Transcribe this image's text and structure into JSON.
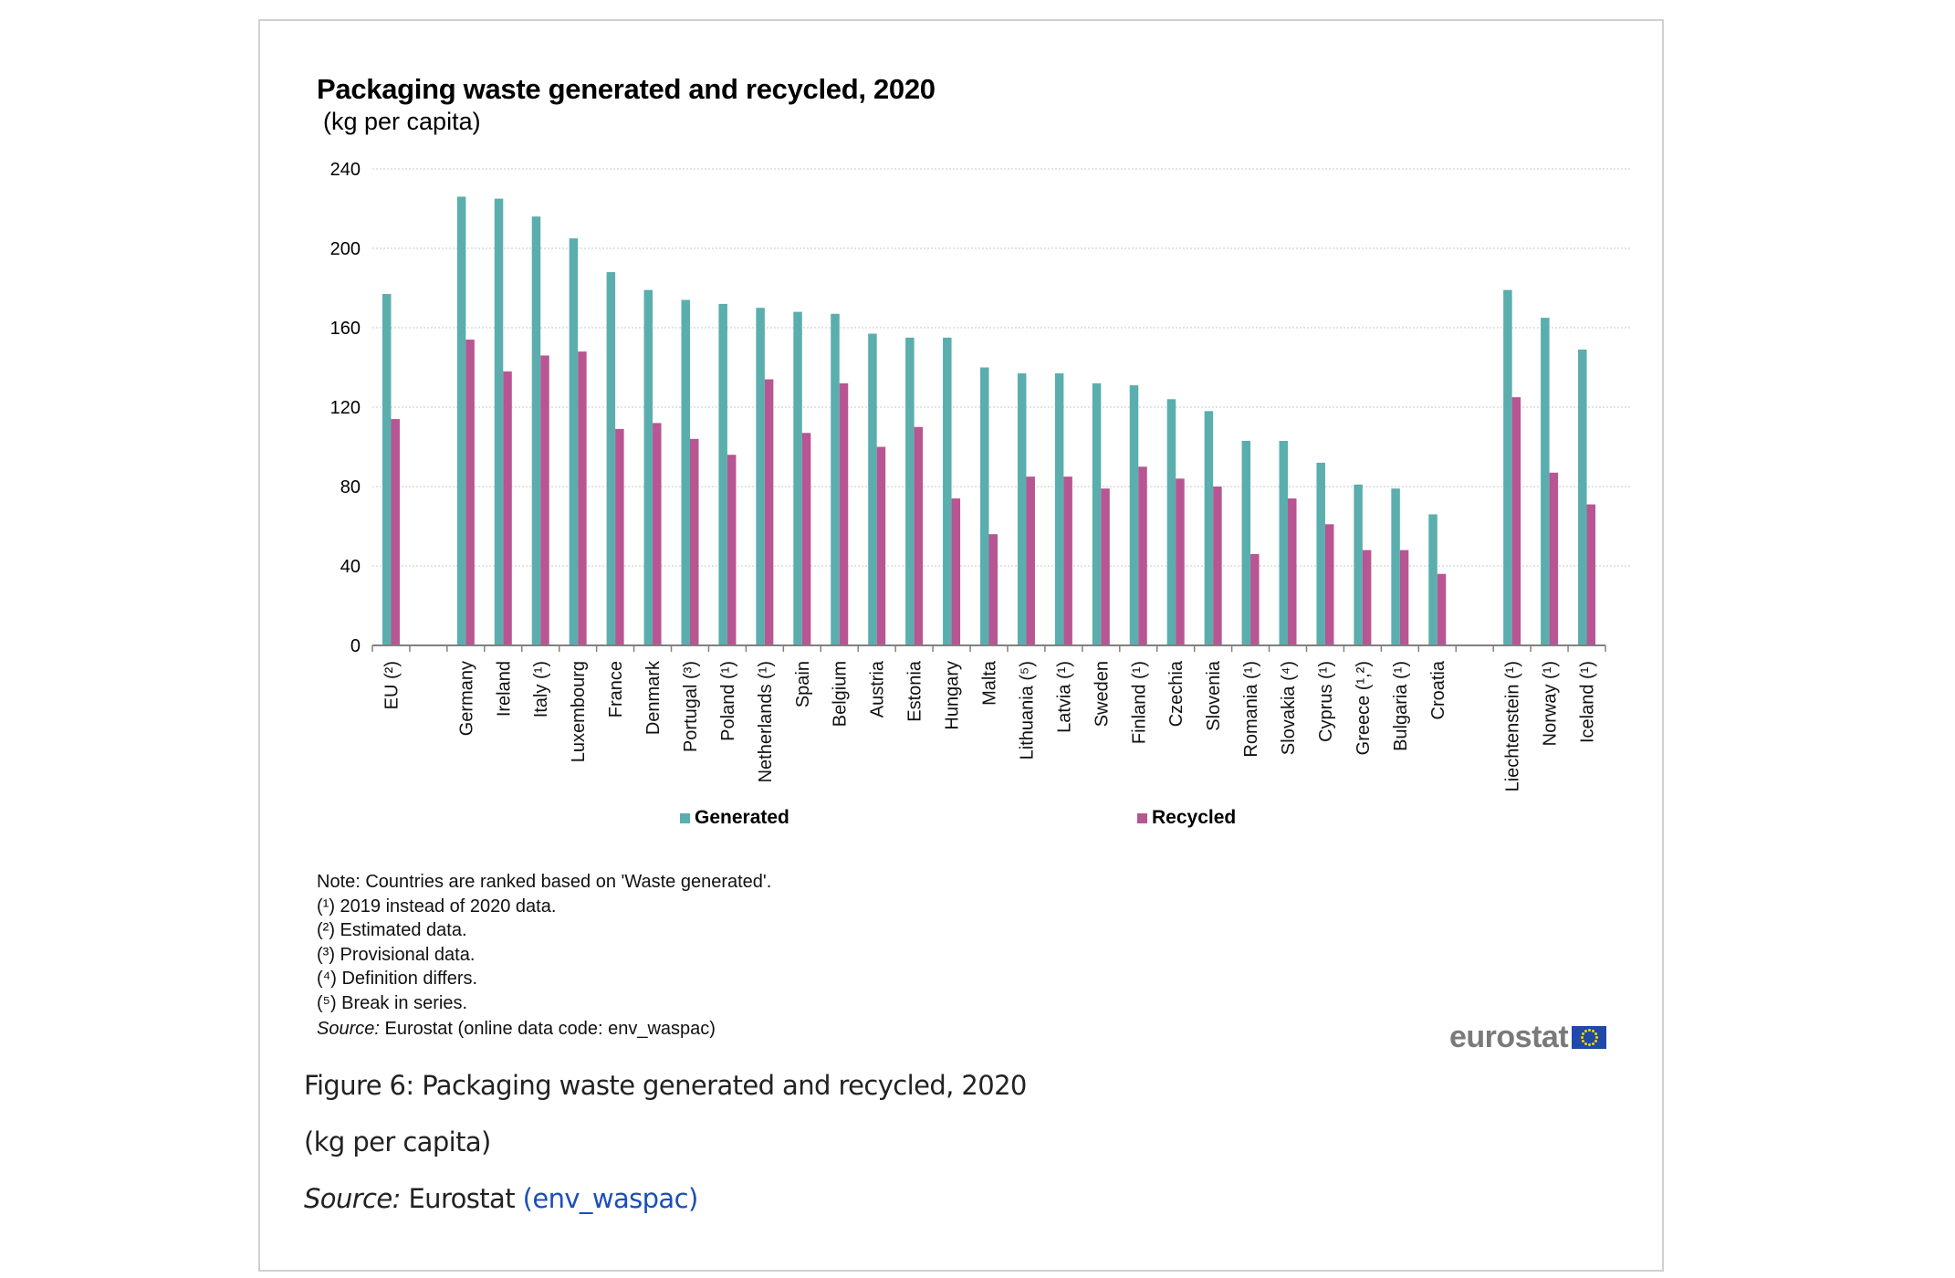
{
  "chart_title": "Packaging waste generated and recycled, 2020",
  "chart_subtitle": "(kg per capita)",
  "legend": [
    {
      "label": "Generated",
      "color": "#5aaeae"
    },
    {
      "label": "Recycled",
      "color": "#b85593"
    }
  ],
  "notes": {
    "note": "Note: Countries are ranked based on 'Waste generated'.",
    "footnotes": [
      {
        "marker": "1",
        "text": "2019 instead of 2020 data."
      },
      {
        "marker": "2",
        "text": "Estimated data."
      },
      {
        "marker": "3",
        "text": "Provisional data."
      },
      {
        "marker": "4",
        "text": "Definition differs."
      },
      {
        "marker": "5",
        "text": "Break in series."
      }
    ],
    "source_label": "Source:",
    "source_text": "Eurostat (online data code: env_waspac)"
  },
  "logo": {
    "text": "eurostat",
    "flag_icon": "eu-flag-icon"
  },
  "caption": {
    "figure_title": "Figure 6: Packaging waste generated and recycled, 2020",
    "unit": "(kg per capita)",
    "source_label": "Source:",
    "source_text": "Eurostat",
    "source_link": "(env_waspac)"
  },
  "colors": {
    "generated": "#5aaeae",
    "recycled": "#b85593",
    "gridline": "#d4d4d4",
    "axis": "#808080",
    "link": "#1a4fb8"
  },
  "chart_data": {
    "type": "bar",
    "title": "Packaging waste generated and recycled, 2020",
    "subtitle": "(kg per capita)",
    "xlabel": "",
    "ylabel": "kg per capita",
    "ylim": [
      0,
      240
    ],
    "yticks": [
      0,
      40,
      80,
      120,
      160,
      200,
      240
    ],
    "grid": true,
    "legend_position": "bottom",
    "categories": [
      "EU (²)",
      "",
      "Germany",
      "Ireland",
      "Italy (¹)",
      "Luxembourg",
      "France",
      "Denmark",
      "Portugal (³)",
      "Poland (¹)",
      "Netherlands (¹)",
      "Spain",
      "Belgium",
      "Austria",
      "Estonia",
      "Hungary",
      "Malta",
      "Lithuania (⁵)",
      "Latvia (¹)",
      "Sweden",
      "Finland (¹)",
      "Czechia",
      "Slovenia",
      "Romania (¹)",
      "Slovakia (⁴)",
      "Cyprus (¹)",
      "Greece (¹,²)",
      "Bulgaria (¹)",
      "Croatia",
      "",
      "Liechtenstein (¹)",
      "Norway (¹)",
      "Iceland (¹)"
    ],
    "series": [
      {
        "name": "Generated",
        "color": "#5aaeae",
        "values": [
          177,
          null,
          226,
          225,
          216,
          205,
          188,
          179,
          174,
          172,
          170,
          168,
          167,
          157,
          155,
          155,
          140,
          137,
          137,
          132,
          131,
          124,
          118,
          103,
          103,
          92,
          81,
          79,
          66,
          null,
          179,
          165,
          149
        ]
      },
      {
        "name": "Recycled",
        "color": "#b85593",
        "values": [
          114,
          null,
          154,
          138,
          146,
          148,
          109,
          112,
          104,
          96,
          134,
          107,
          132,
          100,
          110,
          74,
          56,
          85,
          85,
          79,
          90,
          84,
          80,
          46,
          74,
          61,
          48,
          48,
          36,
          null,
          125,
          87,
          71
        ]
      }
    ]
  }
}
